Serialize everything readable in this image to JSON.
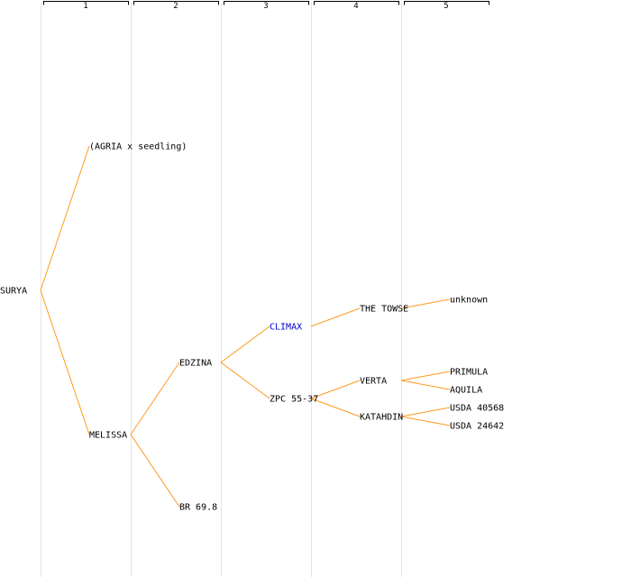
{
  "generations": [
    "1",
    "2",
    "3",
    "4",
    "5"
  ],
  "colors": {
    "edge": "#ff9a1f",
    "highlight": "#0000cc",
    "text": "#000000",
    "column_line": "#e4e4e4"
  },
  "nodes": [
    {
      "id": "surya",
      "label": "SURYA",
      "gen": 0
    },
    {
      "id": "agria-x-seedling",
      "label": "(AGRIA x seedling)",
      "gen": 1
    },
    {
      "id": "melissa",
      "label": "MELISSA",
      "gen": 1
    },
    {
      "id": "edzina",
      "label": "EDZINA",
      "gen": 2
    },
    {
      "id": "br-69-8",
      "label": "BR 69.8",
      "gen": 2
    },
    {
      "id": "climax",
      "label": "CLIMAX",
      "gen": 3,
      "highlight": true
    },
    {
      "id": "zpc-55-37",
      "label": "ZPC 55-37",
      "gen": 3
    },
    {
      "id": "the-towse",
      "label": "THE TOWSE",
      "gen": 4
    },
    {
      "id": "verta",
      "label": "VERTA",
      "gen": 4
    },
    {
      "id": "katahdin",
      "label": "KATAHDIN",
      "gen": 4
    },
    {
      "id": "unknown",
      "label": "unknown",
      "gen": 5
    },
    {
      "id": "primula",
      "label": "PRIMULA",
      "gen": 5
    },
    {
      "id": "aquila",
      "label": "AQUILA",
      "gen": 5
    },
    {
      "id": "usda-40568",
      "label": "USDA 40568",
      "gen": 5
    },
    {
      "id": "usda-24642",
      "label": "USDA 24642",
      "gen": 5
    }
  ],
  "edges": [
    [
      "surya",
      "agria-x-seedling"
    ],
    [
      "surya",
      "melissa"
    ],
    [
      "melissa",
      "edzina"
    ],
    [
      "melissa",
      "br-69-8"
    ],
    [
      "edzina",
      "climax"
    ],
    [
      "edzina",
      "zpc-55-37"
    ],
    [
      "climax",
      "the-towse"
    ],
    [
      "zpc-55-37",
      "verta"
    ],
    [
      "zpc-55-37",
      "katahdin"
    ],
    [
      "the-towse",
      "unknown"
    ],
    [
      "verta",
      "primula"
    ],
    [
      "verta",
      "aquila"
    ],
    [
      "katahdin",
      "usda-40568"
    ],
    [
      "katahdin",
      "usda-24642"
    ]
  ]
}
